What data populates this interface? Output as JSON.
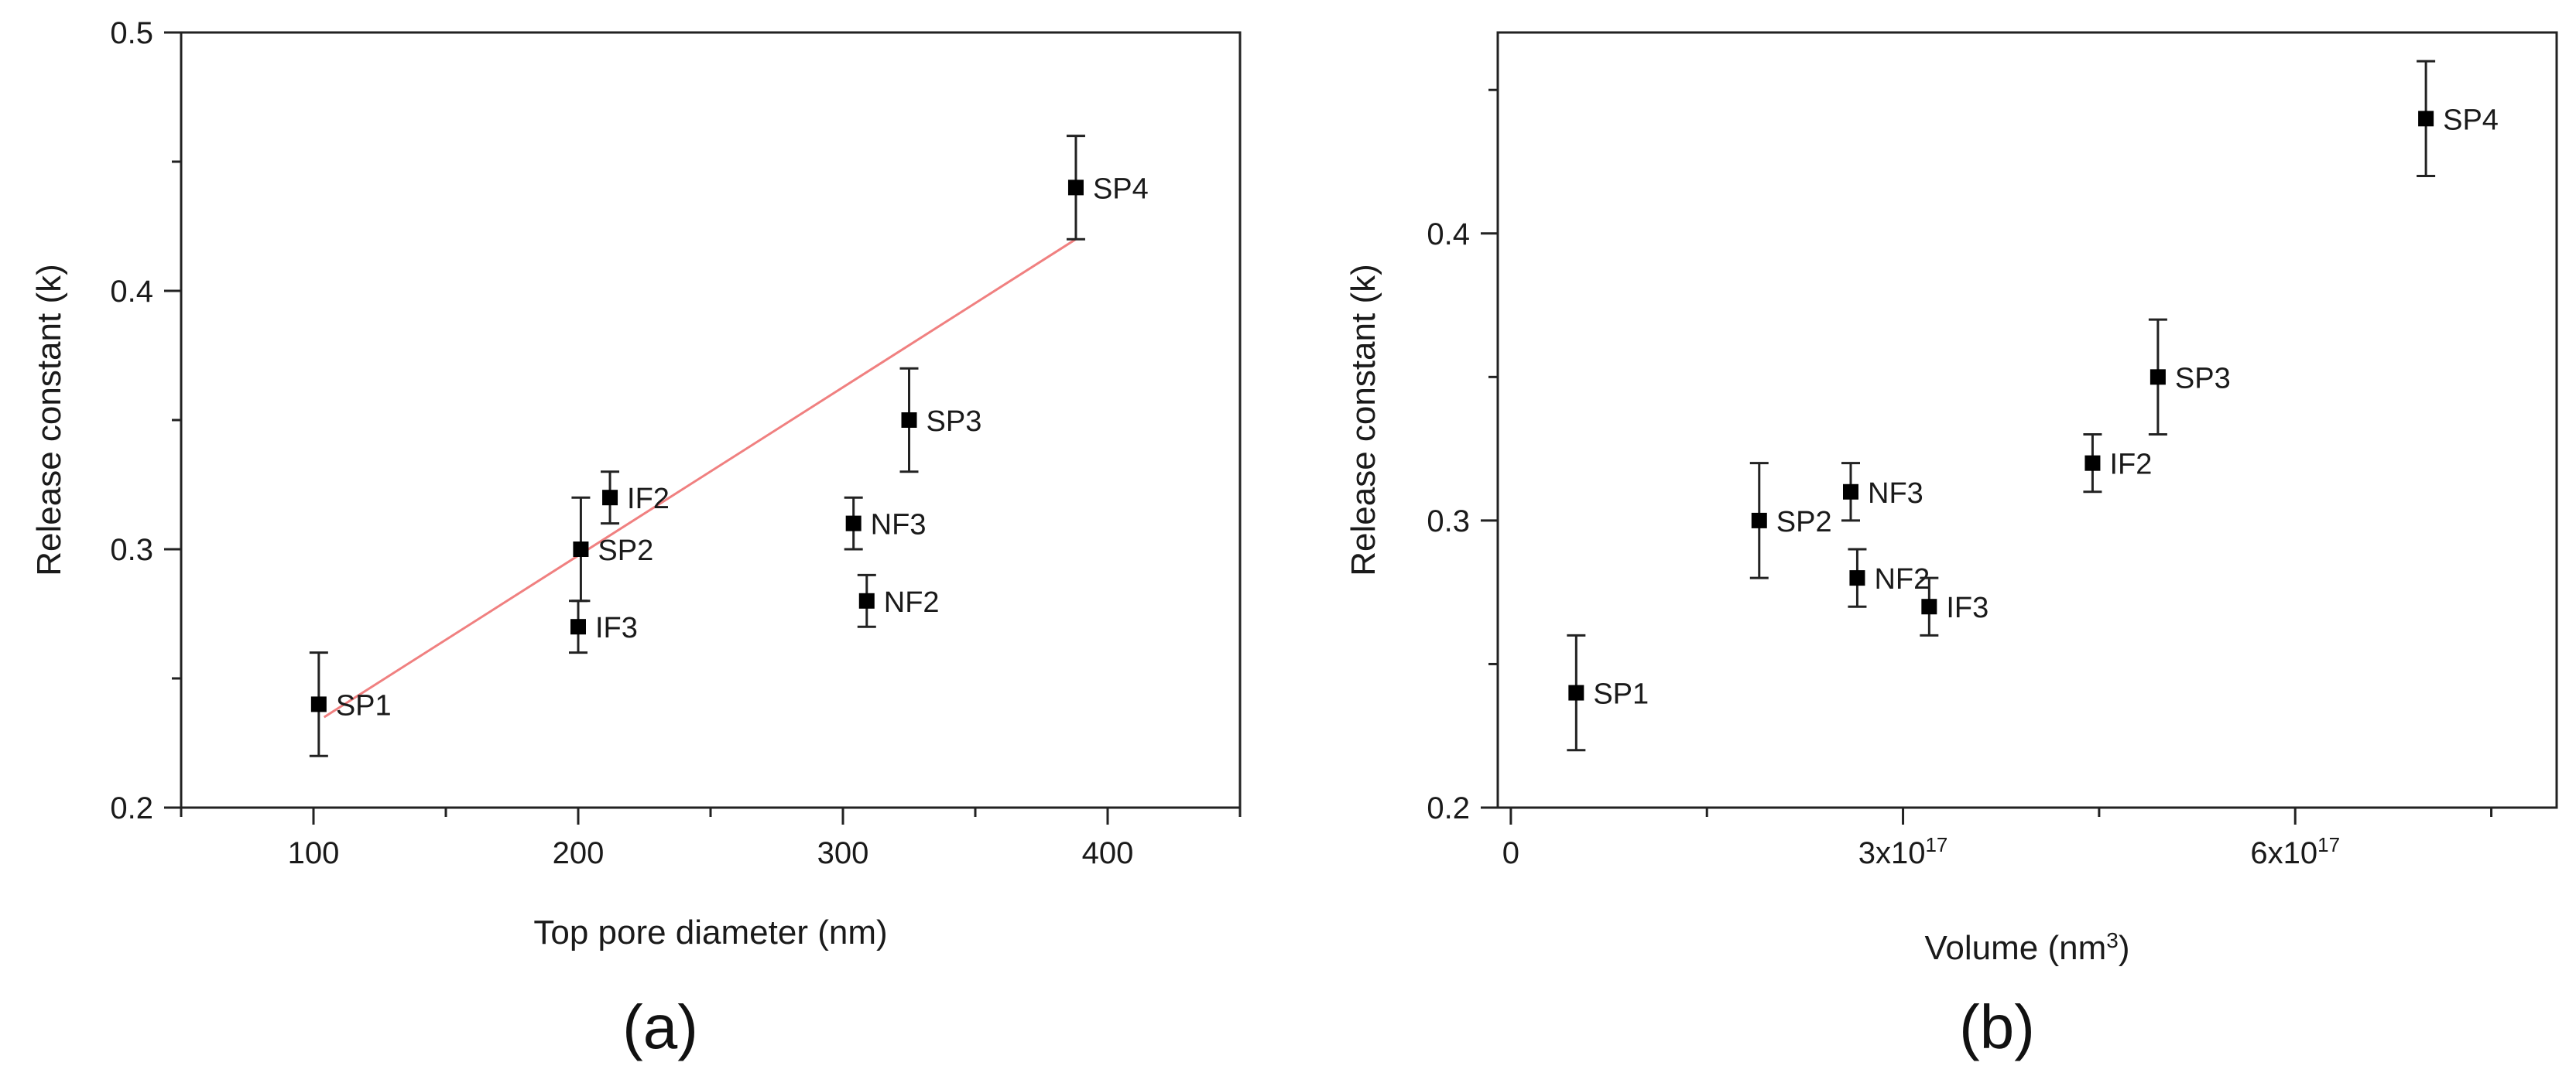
{
  "chart_data": [
    {
      "type": "scatter",
      "panel_label": "(a)",
      "xlabel": "Top pore diameter (nm)",
      "ylabel": "Release constant (k)",
      "xlim": [
        50,
        450
      ],
      "ylim": [
        0.2,
        0.5
      ],
      "xticks": [
        100,
        200,
        300,
        400
      ],
      "xtick_labels": [
        "100",
        "200",
        "300",
        "400"
      ],
      "yticks": [
        0.2,
        0.3,
        0.4,
        0.5
      ],
      "ytick_labels": [
        "0.2",
        "0.3",
        "0.4",
        "0.5"
      ],
      "x_minor_step": 50,
      "y_minor_step": 0.05,
      "points": [
        {
          "label": "SP1",
          "x": 102,
          "y": 0.24,
          "err": 0.02
        },
        {
          "label": "IF3",
          "x": 200,
          "y": 0.27,
          "err": 0.01
        },
        {
          "label": "SP2",
          "x": 201,
          "y": 0.3,
          "err": 0.02
        },
        {
          "label": "IF2",
          "x": 212,
          "y": 0.32,
          "err": 0.01
        },
        {
          "label": "NF3",
          "x": 304,
          "y": 0.31,
          "err": 0.01
        },
        {
          "label": "NF2",
          "x": 309,
          "y": 0.28,
          "err": 0.01
        },
        {
          "label": "SP3",
          "x": 325,
          "y": 0.35,
          "err": 0.02
        },
        {
          "label": "SP4",
          "x": 388,
          "y": 0.44,
          "err": 0.02
        }
      ],
      "fit_line": {
        "x": [
          104,
          388
        ],
        "y": [
          0.235,
          0.42
        ],
        "color": "#f08080"
      },
      "marker_color": "#000000",
      "grid": false,
      "legend": "none"
    },
    {
      "type": "scatter",
      "panel_label": "(b)",
      "xlabel_main": "Volume (nm",
      "xlabel_sup": "3",
      "xlabel_end": ")",
      "ylabel": "Release constant (k)",
      "xlim": [
        -1e+16,
        8e+17
      ],
      "ylim": [
        0.2,
        0.47
      ],
      "xticks": [
        0,
        3e+17,
        6e+17
      ],
      "xtick_labels": [
        {
          "base": "0",
          "sup": ""
        },
        {
          "base": "3x10",
          "sup": "17"
        },
        {
          "base": "6x10",
          "sup": "17"
        }
      ],
      "yticks": [
        0.2,
        0.3,
        0.4
      ],
      "ytick_labels": [
        "0.2",
        "0.3",
        "0.4"
      ],
      "x_minor_step": 1.5e+17,
      "y_minor_step": 0.05,
      "points": [
        {
          "label": "SP1",
          "x": 5e+16,
          "y": 0.24,
          "err": 0.02
        },
        {
          "label": "SP2",
          "x": 1.9e+17,
          "y": 0.3,
          "err": 0.02
        },
        {
          "label": "NF3",
          "x": 2.6e+17,
          "y": 0.31,
          "err": 0.01
        },
        {
          "label": "NF2",
          "x": 2.65e+17,
          "y": 0.28,
          "err": 0.01
        },
        {
          "label": "IF3",
          "x": 3.2e+17,
          "y": 0.27,
          "err": 0.01
        },
        {
          "label": "IF2",
          "x": 4.45e+17,
          "y": 0.32,
          "err": 0.01
        },
        {
          "label": "SP3",
          "x": 4.95e+17,
          "y": 0.35,
          "err": 0.02
        },
        {
          "label": "SP4",
          "x": 7e+17,
          "y": 0.44,
          "err": 0.02
        }
      ],
      "marker_color": "#000000",
      "grid": false,
      "legend": "none"
    }
  ]
}
